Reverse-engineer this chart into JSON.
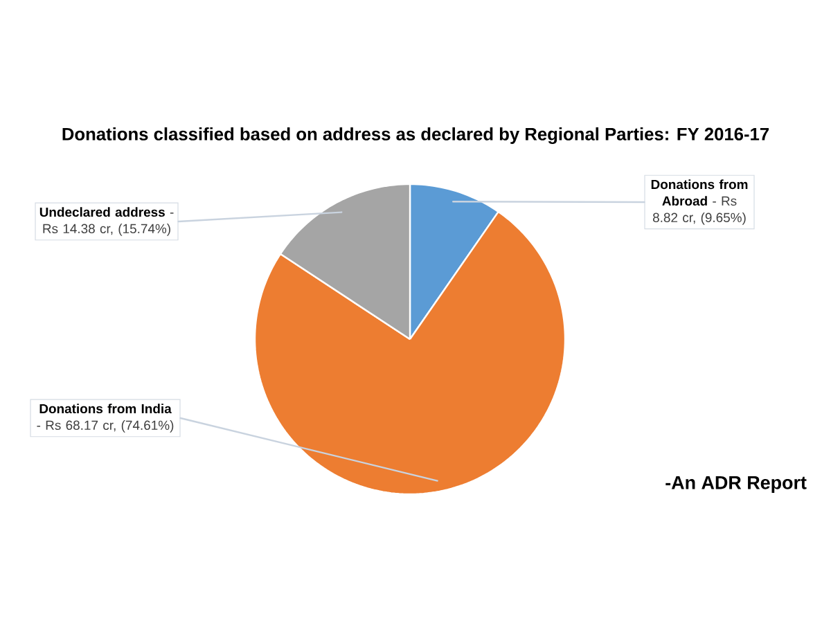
{
  "chart_data": {
    "type": "pie",
    "title": "Donations classified based on address as declared by Regional Parties: FY 2016-17",
    "categories": [
      "Donations from Abroad",
      "Donations from India",
      "Undeclared address"
    ],
    "values": [
      8.82,
      68.17,
      14.38
    ],
    "value_labels": [
      "- Rs 8.82 cr, (9.65%)",
      "- Rs 68.17 cr, (74.61%)",
      "- Rs 14.38 cr, (15.74%)"
    ],
    "colors": [
      "#5b9bd5",
      "#ed7d31",
      "#a5a5a5"
    ],
    "annotations": [
      "-An ADR Report"
    ]
  }
}
